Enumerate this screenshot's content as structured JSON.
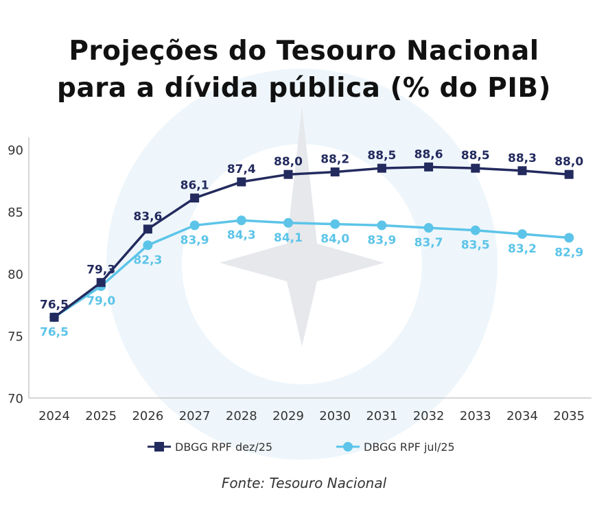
{
  "title_line1": "Projeções do Tesouro Nacional",
  "title_line2": "para a dívida pública (% do PIB)",
  "source": "Fonte: Tesouro Nacional",
  "colors": {
    "dark": "#232a5e",
    "light": "#5cc4e8",
    "watermark": "#eef6fb",
    "star": "#e6e8ec"
  },
  "chart_data": {
    "type": "line",
    "title": "Projeções do Tesouro Nacional para a dívida pública (% do PIB)",
    "xlabel": "",
    "ylabel": "",
    "ylim": [
      70,
      90
    ],
    "yticks": [
      "70",
      "75",
      "80",
      "85",
      "90"
    ],
    "categories": [
      "2024",
      "2025",
      "2026",
      "2027",
      "2028",
      "2029",
      "2030",
      "2031",
      "2032",
      "2033",
      "2034",
      "2035"
    ],
    "legend_position": "bottom",
    "series": [
      {
        "name": "DBGG RPF dez/25",
        "marker": "square",
        "values": [
          76.5,
          79.3,
          83.6,
          86.1,
          87.4,
          88.0,
          88.2,
          88.5,
          88.6,
          88.5,
          88.3,
          88.0
        ],
        "labels": [
          "76,5",
          "79,3",
          "83,6",
          "86,1",
          "87,4",
          "88,0",
          "88,2",
          "88,5",
          "88,6",
          "88,5",
          "88,3",
          "88,0"
        ]
      },
      {
        "name": "DBGG RPF jul/25",
        "marker": "circle",
        "values": [
          76.5,
          79.0,
          82.3,
          83.9,
          84.3,
          84.1,
          84.0,
          83.9,
          83.7,
          83.5,
          83.2,
          82.9
        ],
        "labels": [
          "76,5",
          "79,0",
          "82,3",
          "83,9",
          "84,3",
          "84,1",
          "84,0",
          "83,9",
          "83,7",
          "83,5",
          "83,2",
          "82,9"
        ]
      }
    ]
  }
}
